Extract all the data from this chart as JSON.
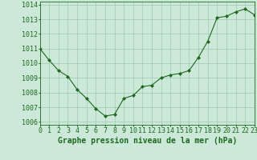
{
  "x": [
    0,
    1,
    2,
    3,
    4,
    5,
    6,
    7,
    8,
    9,
    10,
    11,
    12,
    13,
    14,
    15,
    16,
    17,
    18,
    19,
    20,
    21,
    22,
    23
  ],
  "y": [
    1011.0,
    1010.2,
    1009.5,
    1009.1,
    1008.2,
    1007.6,
    1006.9,
    1006.4,
    1006.5,
    1007.6,
    1007.8,
    1008.4,
    1008.5,
    1009.0,
    1009.2,
    1009.3,
    1009.5,
    1010.4,
    1011.5,
    1013.1,
    1013.2,
    1013.5,
    1013.7,
    1013.3
  ],
  "ylim": [
    1005.8,
    1014.2
  ],
  "xlim": [
    0,
    23
  ],
  "yticks": [
    1006,
    1007,
    1008,
    1009,
    1010,
    1011,
    1012,
    1013,
    1014
  ],
  "xtick_labels": [
    "0",
    "1",
    "2",
    "3",
    "4",
    "5",
    "6",
    "7",
    "8",
    "9",
    "10",
    "11",
    "12",
    "13",
    "14",
    "15",
    "16",
    "17",
    "18",
    "19",
    "20",
    "21",
    "22",
    "23"
  ],
  "line_color": "#1a6b1a",
  "marker_color": "#1a6b1a",
  "bg_color": "#cce8d8",
  "grid_color": "#a0c8b0",
  "xlabel": "Graphe pression niveau de la mer (hPa)",
  "xlabel_color": "#1a6b1a",
  "tick_color": "#1a6b1a",
  "axis_label_fontsize": 7.0,
  "tick_fontsize": 6.0
}
